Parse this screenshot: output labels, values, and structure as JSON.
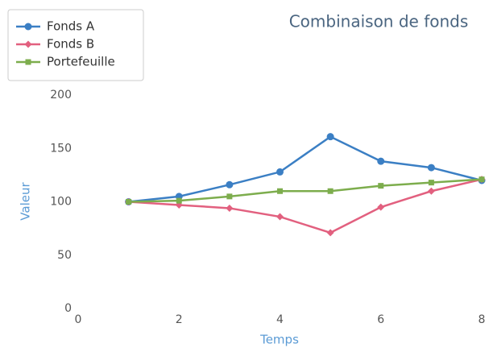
{
  "chart_data": {
    "type": "line",
    "title": "Combinaison de fonds",
    "x_label": "Temps",
    "y_label": "Valeur",
    "x": [
      1,
      2,
      3,
      4,
      5,
      6,
      7,
      8
    ],
    "series": [
      {
        "name": "Fonds A",
        "color": "#3b7fc4",
        "marker": "circle",
        "values": [
          100,
          105,
          116,
          128,
          161,
          138,
          132,
          120
        ]
      },
      {
        "name": "Fonds B",
        "color": "#e2607f",
        "marker": "diamond",
        "values": [
          100,
          97,
          94,
          86,
          71,
          95,
          110,
          121
        ]
      },
      {
        "name": "Portefeuille",
        "color": "#7dad4d",
        "marker": "square",
        "values": [
          100,
          101,
          105,
          110,
          110,
          115,
          118,
          121
        ]
      }
    ],
    "xlim": [
      0,
      8
    ],
    "xticks": [
      0,
      2,
      4,
      6,
      8
    ],
    "ylim": [
      0,
      200
    ],
    "yticks": [
      0,
      50,
      100,
      150,
      200
    ],
    "grid": false,
    "legend": "upper left"
  }
}
